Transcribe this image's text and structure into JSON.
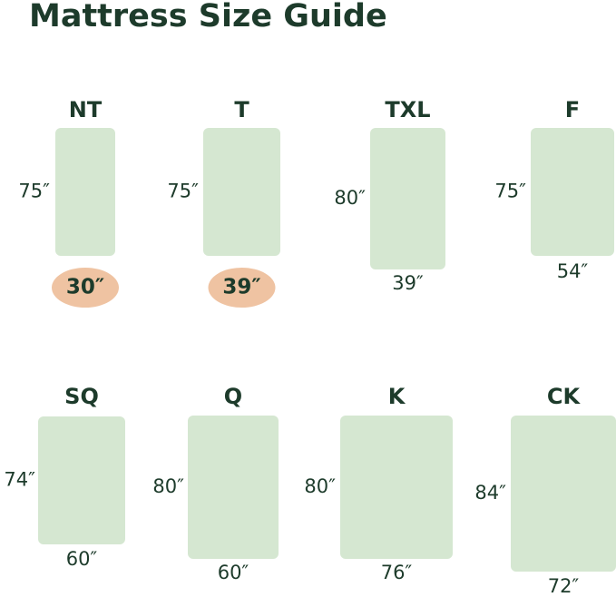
{
  "header": {
    "title": "Mattress Size Guide"
  },
  "mattresses": [
    {
      "name": "NT",
      "length": "75″",
      "width": "30″"
    },
    {
      "name": "T",
      "length": "75″",
      "width": "39″"
    },
    {
      "name": "TXL",
      "length": "80″",
      "width": "39″"
    },
    {
      "name": "F",
      "length": "75″",
      "width": "54″"
    },
    {
      "name": "SQ",
      "length": "74″",
      "width": "60″"
    },
    {
      "name": "Q",
      "length": "80″",
      "width": "60″"
    },
    {
      "name": "K",
      "length": "80″",
      "width": "76″"
    },
    {
      "name": "CK",
      "length": "84″",
      "width": "72″"
    }
  ]
}
